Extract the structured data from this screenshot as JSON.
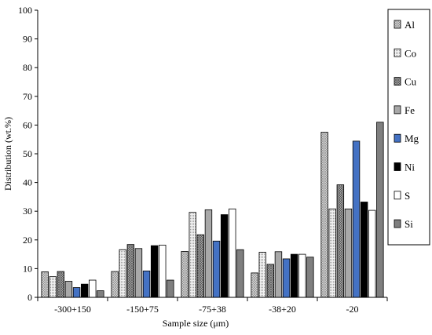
{
  "chart_data": {
    "type": "bar",
    "xlabel": "Sample size (μm)",
    "ylabel": "Distribution (wt.%)",
    "ylim": [
      0,
      100
    ],
    "yticks": [
      0,
      10,
      20,
      30,
      40,
      50,
      60,
      70,
      80,
      90,
      100
    ],
    "categories": [
      "-300+150",
      "-150+75",
      "-75+38",
      "-38+20",
      "-20"
    ],
    "legend_position": "right",
    "series": [
      {
        "name": "Al",
        "values": [
          8.9,
          9.0,
          16.0,
          8.5,
          57.5
        ],
        "fill": "#c8c8c8",
        "pattern": "crosshatch-light"
      },
      {
        "name": "Co",
        "values": [
          7.2,
          16.6,
          29.6,
          15.7,
          30.8
        ],
        "fill": "#e4e4e4",
        "pattern": "dots"
      },
      {
        "name": "Cu",
        "values": [
          9.0,
          18.4,
          21.8,
          11.5,
          39.2
        ],
        "fill": "#b4b4b4",
        "pattern": "crosshatch-dark"
      },
      {
        "name": "Fe",
        "values": [
          5.6,
          17.0,
          30.5,
          15.9,
          30.8
        ],
        "fill": "#a8a8a8",
        "pattern": "none"
      },
      {
        "name": "Mg",
        "values": [
          3.4,
          9.2,
          19.6,
          13.4,
          54.4
        ],
        "fill": "#4472c4",
        "pattern": "none"
      },
      {
        "name": "Ni",
        "values": [
          4.6,
          18.0,
          28.8,
          15.0,
          33.2
        ],
        "fill": "#000000",
        "pattern": "none"
      },
      {
        "name": "S",
        "values": [
          6.0,
          18.2,
          30.8,
          15.0,
          30.3
        ],
        "fill": "#ffffff",
        "pattern": "none"
      },
      {
        "name": "Si",
        "values": [
          2.3,
          6.0,
          16.6,
          14.0,
          61.0
        ],
        "fill": "#7f7f7f",
        "pattern": "none"
      }
    ]
  }
}
